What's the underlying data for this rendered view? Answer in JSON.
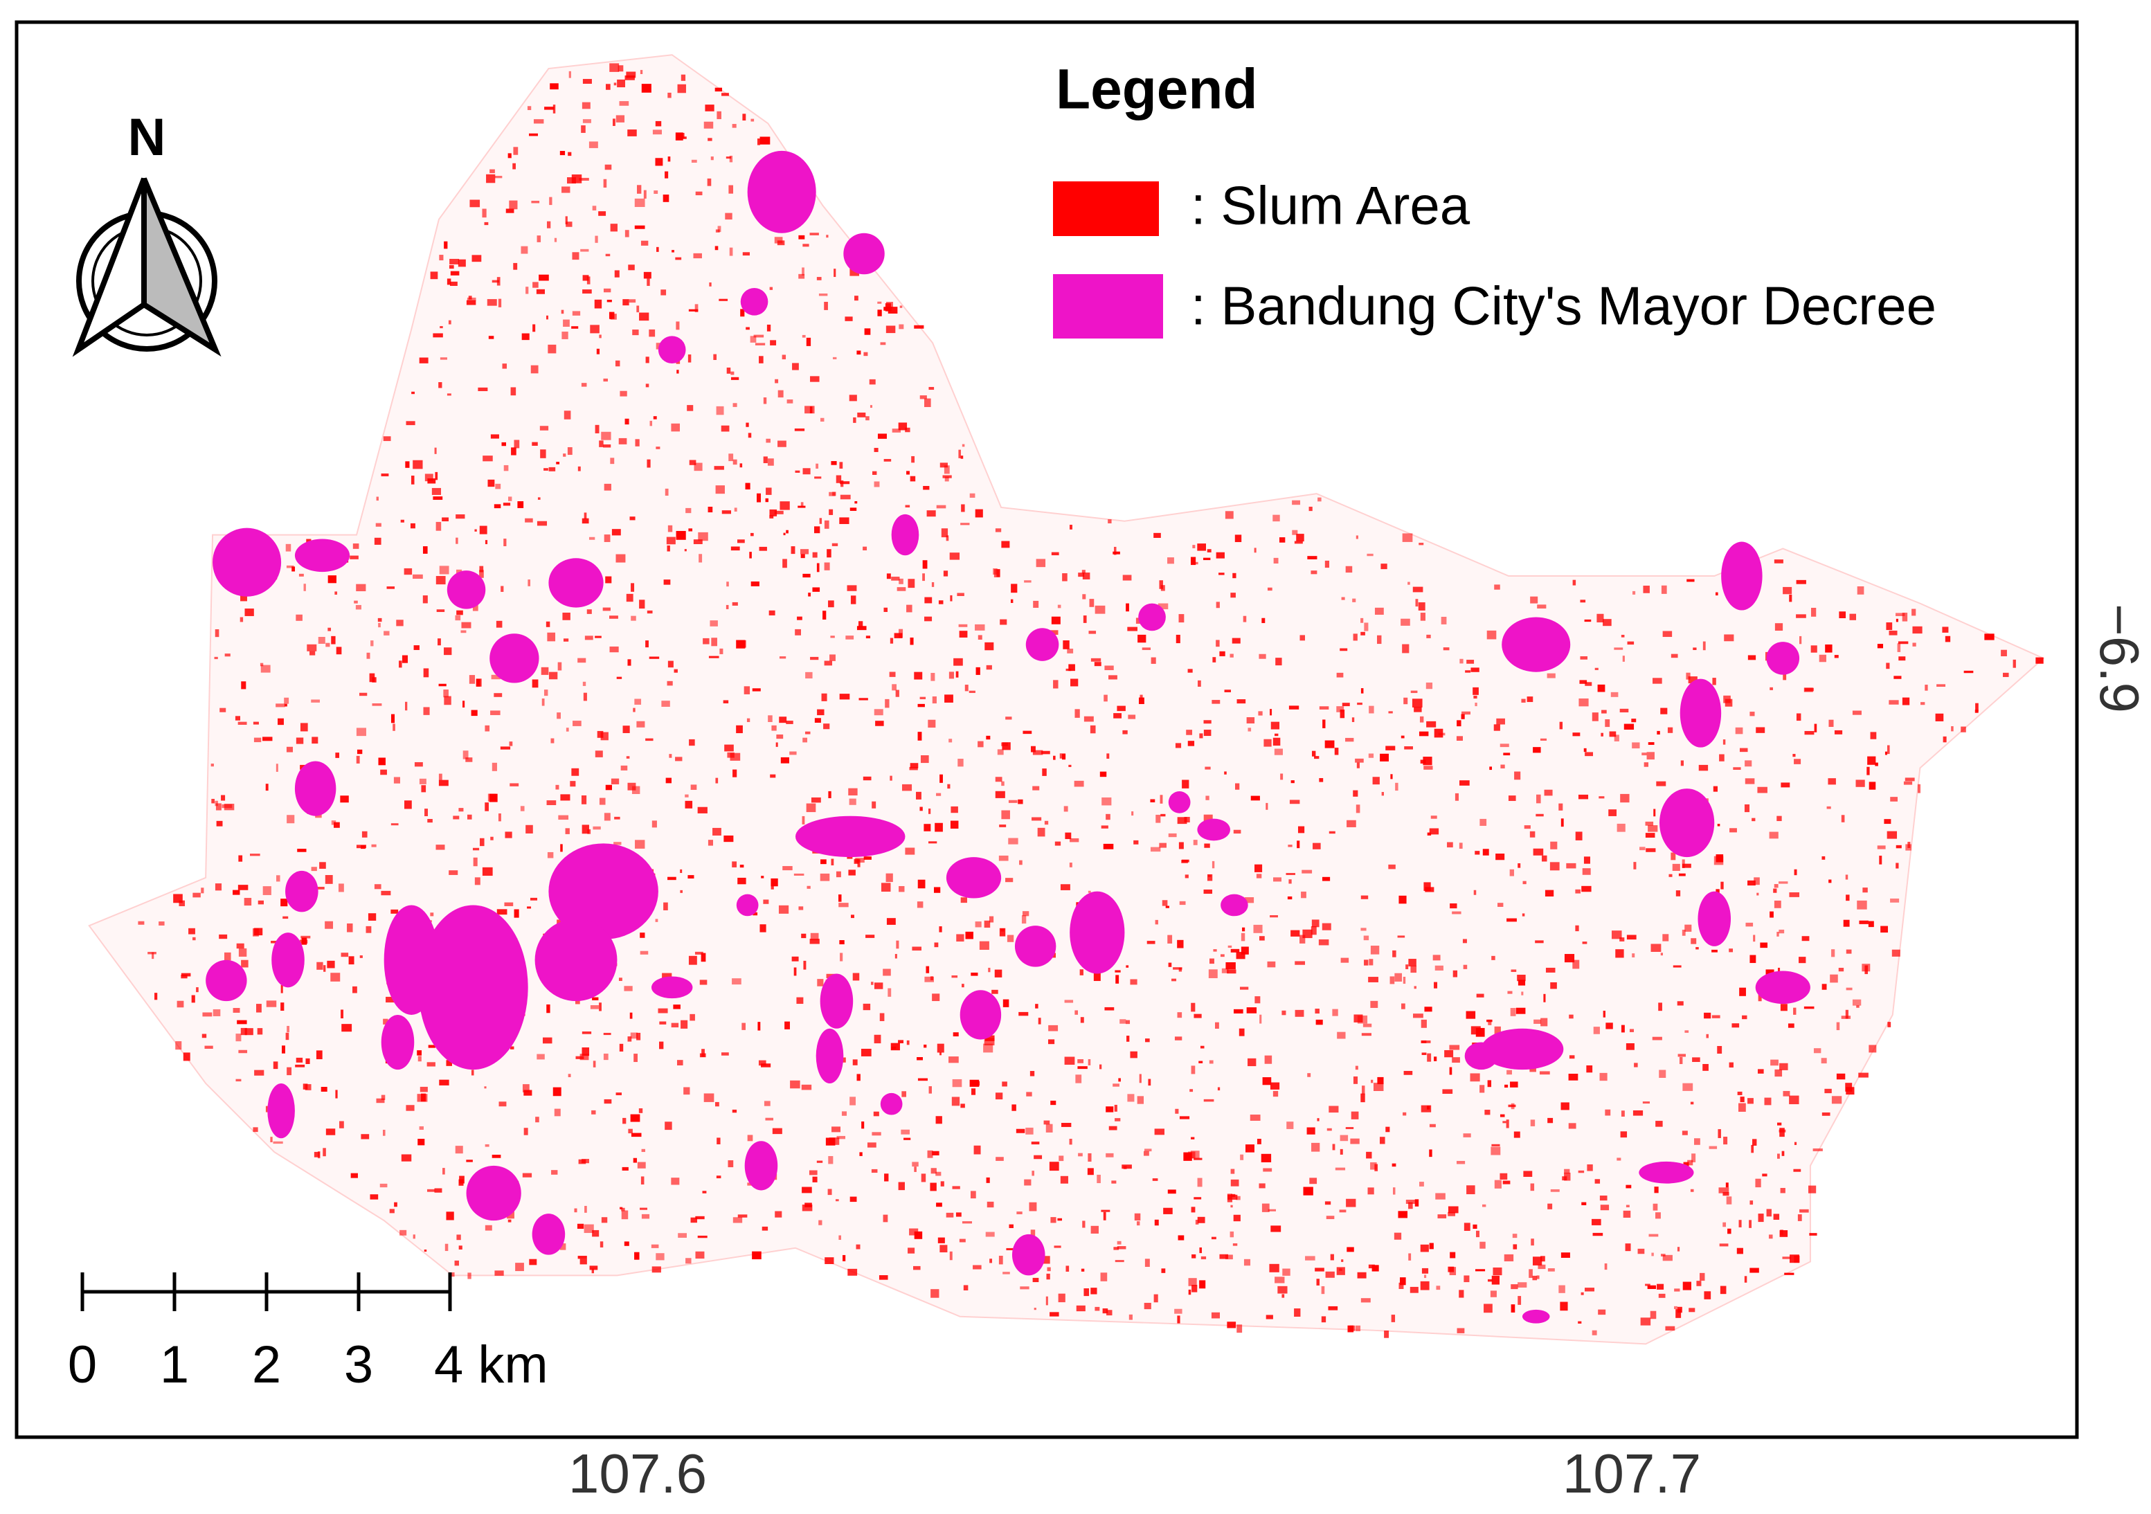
{
  "legend": {
    "title": "Legend",
    "items": [
      {
        "label": ": Slum Area",
        "color": "#ff0000"
      },
      {
        "label": ": Bandung City's Mayor Decree",
        "color": "#ee14c8"
      }
    ]
  },
  "north_arrow": {
    "label": "N"
  },
  "scale_bar": {
    "labels": [
      "0",
      "1",
      "2",
      "3",
      "4 km"
    ]
  },
  "axes": {
    "x_ticks": [
      "107.6",
      "107.7"
    ],
    "y_ticks": [
      "−6.9"
    ]
  }
}
